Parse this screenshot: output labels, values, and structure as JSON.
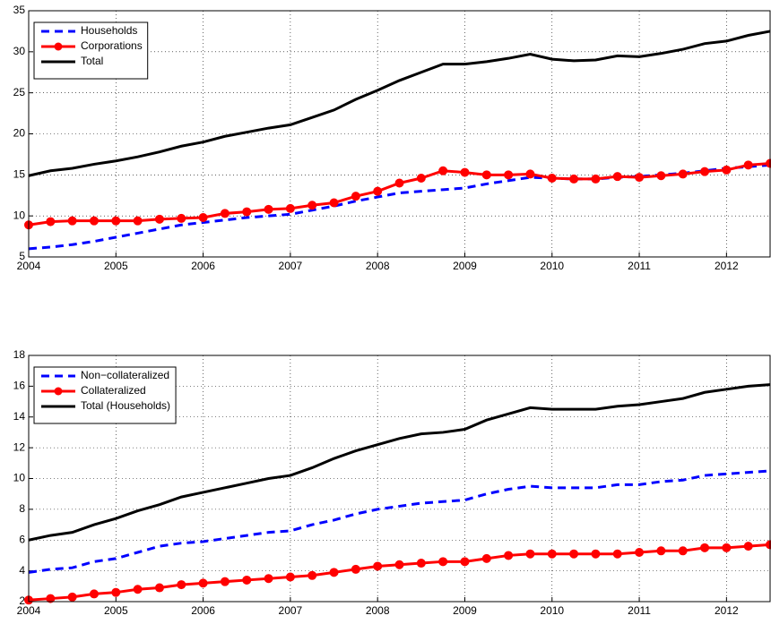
{
  "chart_data": [
    {
      "type": "line",
      "legend": "upper left",
      "grid": true,
      "x": [
        2004,
        2004.25,
        2004.5,
        2004.75,
        2005,
        2005.25,
        2005.5,
        2005.75,
        2006,
        2006.25,
        2006.5,
        2006.75,
        2007,
        2007.25,
        2007.5,
        2007.75,
        2008,
        2008.25,
        2008.5,
        2008.75,
        2009,
        2009.25,
        2009.5,
        2009.75,
        2010,
        2010.25,
        2010.5,
        2010.75,
        2011,
        2011.25,
        2011.5,
        2011.75,
        2012,
        2012.25,
        2012.5
      ],
      "xlim": [
        2004,
        2012.5
      ],
      "xticks": [
        2004,
        2005,
        2006,
        2007,
        2008,
        2009,
        2010,
        2011,
        2012
      ],
      "ylim": [
        5,
        35
      ],
      "yticks": [
        5,
        10,
        15,
        20,
        25,
        30,
        35
      ],
      "series": [
        {
          "name": "Households",
          "color": "#0000ff",
          "line_style": "dashed",
          "marker": "none",
          "values": [
            6.0,
            6.2,
            6.5,
            6.9,
            7.4,
            7.9,
            8.4,
            8.9,
            9.2,
            9.5,
            9.8,
            10.0,
            10.2,
            10.7,
            11.2,
            11.8,
            12.3,
            12.8,
            13.0,
            13.2,
            13.4,
            13.9,
            14.3,
            14.7,
            14.6,
            14.5,
            14.5,
            14.7,
            14.8,
            15.0,
            15.2,
            15.5,
            15.8,
            16.0,
            16.2
          ]
        },
        {
          "name": "Corporations",
          "color": "#ff0000",
          "line_style": "solid",
          "marker": "circle",
          "values": [
            8.9,
            9.3,
            9.4,
            9.4,
            9.4,
            9.4,
            9.6,
            9.7,
            9.8,
            10.3,
            10.5,
            10.8,
            10.9,
            11.3,
            11.6,
            12.4,
            13.0,
            14.0,
            14.6,
            15.5,
            15.3,
            15.0,
            15.0,
            15.1,
            14.6,
            14.5,
            14.5,
            14.8,
            14.7,
            14.9,
            15.1,
            15.4,
            15.6,
            16.2,
            16.4
          ]
        },
        {
          "name": "Total",
          "color": "#000000",
          "line_style": "solid",
          "marker": "none",
          "values": [
            14.9,
            15.5,
            15.8,
            16.3,
            16.7,
            17.2,
            17.8,
            18.5,
            19.0,
            19.7,
            20.2,
            20.7,
            21.1,
            22.0,
            22.9,
            24.2,
            25.3,
            26.5,
            27.5,
            28.5,
            28.5,
            28.8,
            29.2,
            29.7,
            29.1,
            28.9,
            29.0,
            29.5,
            29.4,
            29.8,
            30.3,
            31.0,
            31.3,
            32.0,
            32.5
          ]
        }
      ]
    },
    {
      "type": "line",
      "legend": "upper left",
      "grid": true,
      "x": [
        2004,
        2004.25,
        2004.5,
        2004.75,
        2005,
        2005.25,
        2005.5,
        2005.75,
        2006,
        2006.25,
        2006.5,
        2006.75,
        2007,
        2007.25,
        2007.5,
        2007.75,
        2008,
        2008.25,
        2008.5,
        2008.75,
        2009,
        2009.25,
        2009.5,
        2009.75,
        2010,
        2010.25,
        2010.5,
        2010.75,
        2011,
        2011.25,
        2011.5,
        2011.75,
        2012,
        2012.25,
        2012.5
      ],
      "xlim": [
        2004,
        2012.5
      ],
      "xticks": [
        2004,
        2005,
        2006,
        2007,
        2008,
        2009,
        2010,
        2011,
        2012
      ],
      "ylim": [
        2,
        18
      ],
      "yticks": [
        2,
        4,
        6,
        8,
        10,
        12,
        14,
        16,
        18
      ],
      "series": [
        {
          "name": "Non−collateralized",
          "color": "#0000ff",
          "line_style": "dashed",
          "marker": "none",
          "values": [
            3.9,
            4.1,
            4.2,
            4.6,
            4.8,
            5.2,
            5.6,
            5.8,
            5.9,
            6.1,
            6.3,
            6.5,
            6.6,
            7.0,
            7.3,
            7.7,
            8.0,
            8.2,
            8.4,
            8.5,
            8.6,
            9.0,
            9.3,
            9.5,
            9.4,
            9.4,
            9.4,
            9.6,
            9.6,
            9.8,
            9.9,
            10.2,
            10.3,
            10.4,
            10.5
          ]
        },
        {
          "name": "Collateralized",
          "color": "#ff0000",
          "line_style": "solid",
          "marker": "circle",
          "values": [
            2.1,
            2.2,
            2.3,
            2.5,
            2.6,
            2.8,
            2.9,
            3.1,
            3.2,
            3.3,
            3.4,
            3.5,
            3.6,
            3.7,
            3.9,
            4.1,
            4.3,
            4.4,
            4.5,
            4.6,
            4.6,
            4.8,
            5.0,
            5.1,
            5.1,
            5.1,
            5.1,
            5.1,
            5.2,
            5.3,
            5.3,
            5.5,
            5.5,
            5.6,
            5.7
          ]
        },
        {
          "name": "Total (Households)",
          "color": "#000000",
          "line_style": "solid",
          "marker": "none",
          "values": [
            6.0,
            6.3,
            6.5,
            7.0,
            7.4,
            7.9,
            8.3,
            8.8,
            9.1,
            9.4,
            9.7,
            10.0,
            10.2,
            10.7,
            11.3,
            11.8,
            12.2,
            12.6,
            12.9,
            13.0,
            13.2,
            13.8,
            14.2,
            14.6,
            14.5,
            14.5,
            14.5,
            14.7,
            14.8,
            15.0,
            15.2,
            15.6,
            15.8,
            16.0,
            16.1
          ]
        }
      ]
    }
  ]
}
